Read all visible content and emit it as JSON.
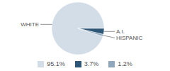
{
  "chart_data": {
    "type": "pie",
    "categories": [
      "WHITE",
      "A.I.",
      "HISPANIC"
    ],
    "values": [
      95.1,
      3.7,
      1.2
    ],
    "value_labels": [
      "95.1%",
      "3.7%",
      "1.2%"
    ],
    "colors": [
      "#d3dde8",
      "#2e5676",
      "#8fa7bd"
    ],
    "legend": "bottom"
  }
}
